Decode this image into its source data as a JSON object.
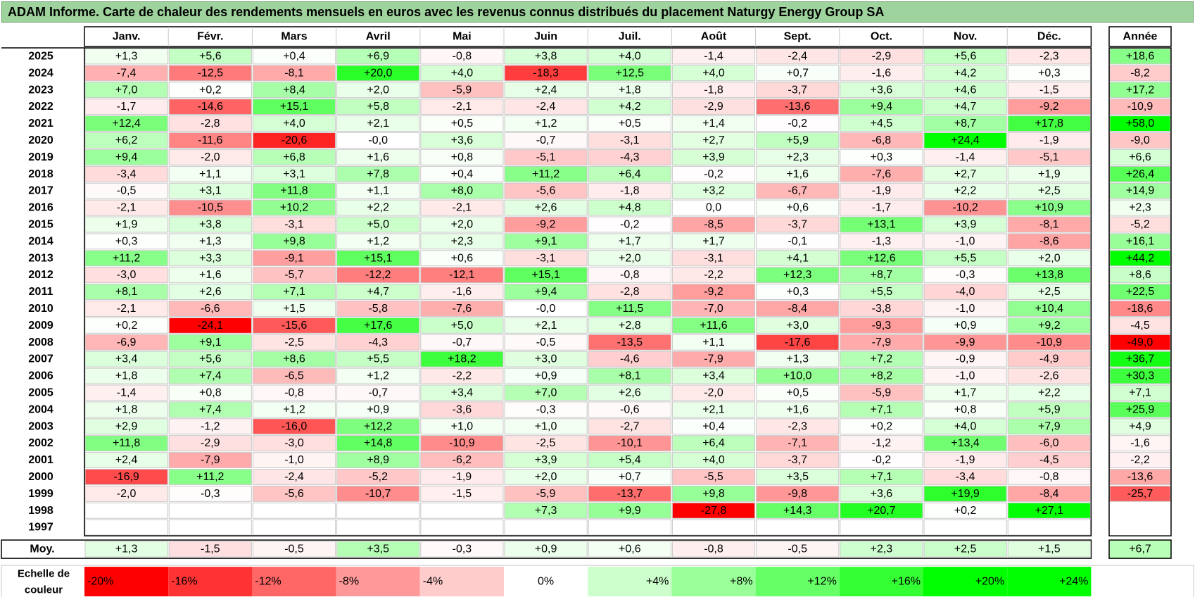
{
  "title": "ADAM Informe. Carte de chaleur des rendements mensuels en euros avec les revenus connus distribués du placement Naturgy Energy Group SA",
  "chart_data": {
    "type": "heatmap",
    "title": "ADAM Informe. Carte de chaleur des rendements mensuels en euros avec les revenus connus distribués du placement Naturgy Energy Group SA",
    "months": [
      "Janv.",
      "Févr.",
      "Mars",
      "Avril",
      "Mai",
      "Juin",
      "Juil.",
      "Août",
      "Sept.",
      "Oct.",
      "Nov.",
      "Déc."
    ],
    "year_header": "Année",
    "years": [
      "2025",
      "2024",
      "2023",
      "2022",
      "2021",
      "2020",
      "2019",
      "2018",
      "2017",
      "2016",
      "2015",
      "2014",
      "2013",
      "2012",
      "2011",
      "2010",
      "2009",
      "2008",
      "2007",
      "2006",
      "2005",
      "2004",
      "2003",
      "2002",
      "2001",
      "2000",
      "1999",
      "1998",
      "1997"
    ],
    "values": [
      [
        "+1,3",
        "+5,6",
        "+0,4",
        "+6,9",
        "-0,8",
        "+3,8",
        "+4,0",
        "-1,4",
        "-2,4",
        "-2,9",
        "+5,6",
        "-2,3"
      ],
      [
        "-7,4",
        "-12,5",
        "-8,1",
        "+20,0",
        "+4,0",
        "-18,3",
        "+12,5",
        "+4,0",
        "+0,7",
        "-1,6",
        "+4,2",
        "+0,3"
      ],
      [
        "+7,0",
        "+0,2",
        "+8,4",
        "+2,0",
        "-5,9",
        "+2,4",
        "+1,8",
        "-1,8",
        "-3,7",
        "+3,6",
        "+4,6",
        "-1,5"
      ],
      [
        "-1,7",
        "-14,6",
        "+15,1",
        "+5,8",
        "-2,1",
        "-2,4",
        "+4,2",
        "-2,9",
        "-13,6",
        "+9,4",
        "+4,7",
        "-9,2"
      ],
      [
        "+12,4",
        "-2,8",
        "+4,0",
        "+2,1",
        "+0,5",
        "+1,2",
        "+0,5",
        "+1,4",
        "-0,2",
        "+4,5",
        "+8,7",
        "+17,8"
      ],
      [
        "+6,2",
        "-11,6",
        "-20,6",
        "-0,0",
        "+3,6",
        "-0,7",
        "-3,1",
        "+2,7",
        "+5,9",
        "-6,8",
        "+24,4",
        "-1,9"
      ],
      [
        "+9,4",
        "-2,0",
        "+6,8",
        "+1,6",
        "+0,8",
        "-5,1",
        "-4,3",
        "+3,9",
        "+2,3",
        "+0,3",
        "-1,4",
        "-5,1"
      ],
      [
        "-3,4",
        "+1,1",
        "+3,1",
        "+7,8",
        "+0,4",
        "+11,2",
        "+6,4",
        "-0,2",
        "+1,6",
        "-7,6",
        "+2,7",
        "+1,9"
      ],
      [
        "-0,5",
        "+3,1",
        "+11,8",
        "+1,1",
        "+8,0",
        "-5,6",
        "-1,8",
        "+3,2",
        "-6,7",
        "-1,9",
        "+2,2",
        "+2,5"
      ],
      [
        "-2,1",
        "-10,5",
        "+10,2",
        "+2,2",
        "-2,1",
        "+2,6",
        "+4,8",
        "0,0",
        "+0,6",
        "-1,7",
        "-10,2",
        "+10,9"
      ],
      [
        "+1,9",
        "+3,8",
        "-3,1",
        "+5,0",
        "+2,0",
        "-9,2",
        "-0,2",
        "-8,5",
        "-3,7",
        "+13,1",
        "+3,9",
        "-8,1"
      ],
      [
        "+0,3",
        "+1,3",
        "+9,8",
        "+1,2",
        "+2,3",
        "+9,1",
        "+1,7",
        "+1,7",
        "-0,1",
        "-1,3",
        "-1,0",
        "-8,6"
      ],
      [
        "+11,2",
        "+3,3",
        "-9,1",
        "+15,1",
        "+0,6",
        "-3,1",
        "+2,0",
        "-3,1",
        "+4,1",
        "+12,6",
        "+5,5",
        "+2,0"
      ],
      [
        "-3,0",
        "+1,6",
        "-5,7",
        "-12,2",
        "-12,1",
        "+15,1",
        "-0,8",
        "-2,2",
        "+12,3",
        "+8,7",
        "-0,3",
        "+13,8"
      ],
      [
        "+8,1",
        "+2,6",
        "+7,1",
        "+4,7",
        "-1,6",
        "+9,4",
        "-2,8",
        "-9,2",
        "+0,3",
        "+5,5",
        "-4,0",
        "+2,5"
      ],
      [
        "-2,1",
        "-6,6",
        "+1,5",
        "-5,8",
        "-7,6",
        "-0,0",
        "+11,5",
        "-7,0",
        "-8,4",
        "-3,8",
        "-1,0",
        "+10,4"
      ],
      [
        "+0,2",
        "-24,1",
        "-15,6",
        "+17,6",
        "+5,0",
        "+2,1",
        "+2,8",
        "+11,6",
        "+3,0",
        "-9,3",
        "+0,9",
        "+9,2"
      ],
      [
        "-6,9",
        "+9,1",
        "-2,5",
        "-4,3",
        "-0,7",
        "-0,5",
        "-13,5",
        "+1,1",
        "-17,6",
        "-7,9",
        "-9,9",
        "-10,9"
      ],
      [
        "+3,4",
        "+5,6",
        "+8,6",
        "+5,5",
        "+18,2",
        "+3,0",
        "-4,6",
        "-7,9",
        "+1,3",
        "+7,2",
        "-0,9",
        "-4,9"
      ],
      [
        "+1,8",
        "+7,4",
        "-6,5",
        "+1,2",
        "-2,2",
        "+0,9",
        "+8,1",
        "+3,4",
        "+10,0",
        "+8,2",
        "-1,0",
        "-2,6"
      ],
      [
        "-1,4",
        "+0,8",
        "-0,8",
        "-0,7",
        "+3,4",
        "+7,0",
        "+2,6",
        "-2,0",
        "+0,5",
        "-5,9",
        "+1,7",
        "+2,2"
      ],
      [
        "+1,8",
        "+7,4",
        "+1,2",
        "+0,9",
        "-3,6",
        "-0,3",
        "-0,6",
        "+2,1",
        "+1,6",
        "+7,1",
        "+0,8",
        "+5,9"
      ],
      [
        "+2,9",
        "-1,2",
        "-16,0",
        "+12,2",
        "+1,0",
        "+1,0",
        "-2,7",
        "+0,4",
        "-2,3",
        "+0,2",
        "+4,0",
        "+7,9"
      ],
      [
        "+11,8",
        "-2,9",
        "-3,0",
        "+14,8",
        "-10,9",
        "-2,5",
        "-10,1",
        "+6,4",
        "-7,1",
        "-1,2",
        "+13,4",
        "-6,0"
      ],
      [
        "+2,4",
        "-7,9",
        "-1,0",
        "+8,9",
        "-6,2",
        "+3,9",
        "+5,4",
        "+4,0",
        "-3,7",
        "-0,2",
        "-1,9",
        "-4,5"
      ],
      [
        "-16,9",
        "+11,2",
        "-2,4",
        "-5,2",
        "-1,9",
        "+2,0",
        "+0,7",
        "-5,5",
        "+3,5",
        "+7,1",
        "-3,4",
        "-0,8"
      ],
      [
        "-2,0",
        "-0,3",
        "-5,6",
        "-10,7",
        "-1,5",
        "-5,9",
        "-13,7",
        "+9,8",
        "-9,8",
        "+3,6",
        "+19,9",
        "-8,4"
      ],
      [
        "",
        "",
        "",
        "",
        "",
        "+7,3",
        "+9,9",
        "-27,8",
        "+14,3",
        "+20,7",
        "+0,2",
        "+27,1"
      ],
      [
        "",
        "",
        "",
        "",
        "",
        "",
        "",
        "",
        "",
        "",
        "",
        ""
      ]
    ],
    "annual": [
      "+18,6",
      "-8,2",
      "+17,2",
      "-10,9",
      "+58,0",
      "-9,0",
      "+6,6",
      "+26,4",
      "+14,9",
      "+2,3",
      "-5,2",
      "+16,1",
      "+44,2",
      "+8,6",
      "+22,5",
      "-18,6",
      "-4,5",
      "-49,0",
      "+36,7",
      "+30,3",
      "+7,1",
      "+25,9",
      "+4,9",
      "-1,6",
      "-2,2",
      "-13,6",
      "-25,7",
      "",
      ""
    ],
    "avg_label": "Moy.",
    "avg_values": [
      "+1,3",
      "-1,5",
      "-0,5",
      "+3,5",
      "-0,3",
      "+0,9",
      "+0,6",
      "-0,8",
      "-0,5",
      "+2,3",
      "+2,5",
      "+1,5"
    ],
    "avg_annual": "+6,7",
    "scale_label": [
      "Echelle de",
      "couleur"
    ],
    "scale": [
      {
        "label": "-20%",
        "value": -20
      },
      {
        "label": "-16%",
        "value": -16
      },
      {
        "label": "-12%",
        "value": -12
      },
      {
        "label": "-8%",
        "value": -8
      },
      {
        "label": "-4%",
        "value": -4
      },
      {
        "label": "0%",
        "value": 0
      },
      {
        "label": "+4%",
        "value": 4
      },
      {
        "label": "+8%",
        "value": 8
      },
      {
        "label": "+12%",
        "value": 12
      },
      {
        "label": "+16%",
        "value": 16
      },
      {
        "label": "+20%",
        "value": 20
      },
      {
        "label": "+24%",
        "value": 24
      }
    ],
    "colors": {
      "negative": "#ff0000",
      "zero": "#ffffff",
      "positive": "#00ff00",
      "title_bg": "#9ed39e",
      "grid": "#c8c8c8"
    }
  }
}
